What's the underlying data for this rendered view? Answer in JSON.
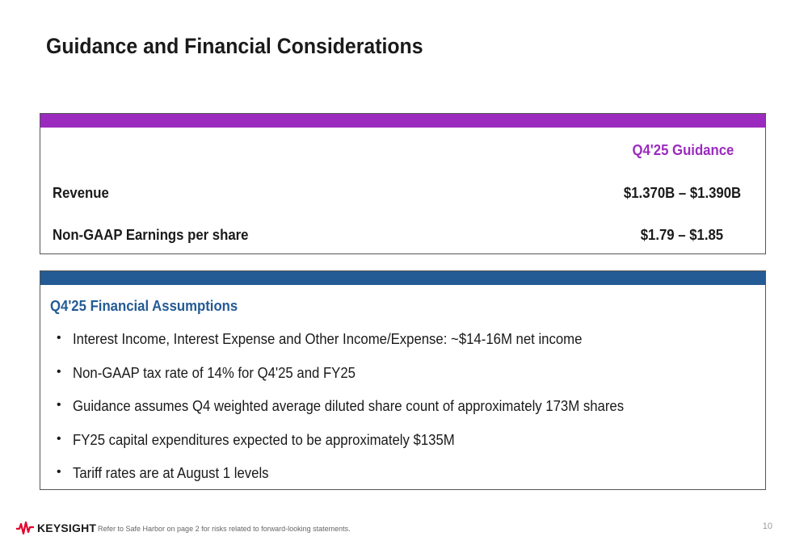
{
  "title": "Guidance and Financial Considerations",
  "guidance": {
    "column_header": "Q4'25 Guidance",
    "rows": [
      {
        "label": "Revenue",
        "value": "$1.370B – $1.390B"
      },
      {
        "label": "Non-GAAP Earnings per share",
        "value": "$1.79 – $1.85"
      }
    ],
    "accent_color": "#9B2BBE"
  },
  "assumptions": {
    "title": "Q4'25 Financial Assumptions",
    "accent_color": "#245B94",
    "items": [
      "Interest Income, Interest Expense and Other Income/Expense:   ~$14-16M net income",
      "Non-GAAP tax rate of 14% for Q4'25 and FY25",
      "Guidance assumes Q4 weighted average diluted share count of approximately 173M shares",
      "FY25 capital expenditures expected to be approximately $135M",
      "Tariff rates are at August 1 levels"
    ]
  },
  "footer": {
    "brand": "KEYSIGHT",
    "logo_icon": "keysight-wave-icon",
    "brand_color": "#E4002B",
    "disclaimer": "Refer to Safe Harbor on page 2 for risks related to forward-looking statements.",
    "page_number": "10"
  }
}
